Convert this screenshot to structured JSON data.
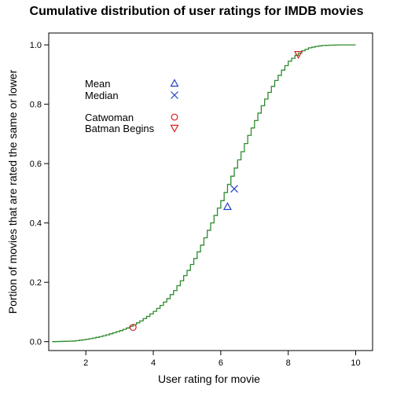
{
  "chart_data": {
    "type": "line",
    "title": "Cumulative distribution of user ratings for IMDB movies",
    "xlabel": "User rating for movie",
    "ylabel": "Portion of movies that are rated the same or lower",
    "xlim": [
      0.9,
      10.5
    ],
    "ylim": [
      -0.03,
      1.04
    ],
    "x_ticks": [
      "2",
      "4",
      "6",
      "8",
      "10"
    ],
    "y_ticks": [
      "0.0",
      "0.2",
      "0.4",
      "0.6",
      "0.8",
      "1.0"
    ],
    "grid": false,
    "line_color": "#2e8b2e",
    "series": [
      {
        "step": true,
        "x": [
          1.0,
          1.6,
          1.8,
          2.0,
          2.2,
          2.4,
          2.6,
          2.8,
          3.0,
          3.2,
          3.4,
          3.6,
          3.8,
          4.0,
          4.2,
          4.4,
          4.6,
          4.8,
          5.0,
          5.2,
          5.4,
          5.6,
          5.8,
          6.0,
          6.2,
          6.4,
          6.6,
          6.8,
          7.0,
          7.2,
          7.4,
          7.6,
          7.8,
          8.0,
          8.2,
          8.4,
          8.6,
          8.8,
          9.0,
          9.2,
          9.5,
          10.0
        ],
        "y": [
          0.0,
          0.002,
          0.005,
          0.008,
          0.012,
          0.017,
          0.023,
          0.03,
          0.037,
          0.046,
          0.057,
          0.07,
          0.085,
          0.102,
          0.122,
          0.145,
          0.172,
          0.205,
          0.24,
          0.28,
          0.325,
          0.375,
          0.425,
          0.475,
          0.53,
          0.585,
          0.64,
          0.695,
          0.745,
          0.795,
          0.84,
          0.88,
          0.915,
          0.945,
          0.965,
          0.98,
          0.99,
          0.995,
          0.998,
          0.999,
          1.0,
          1.0
        ]
      }
    ],
    "markers": [
      {
        "label": "Mean",
        "symbol": "triangle",
        "color": "#1f3fbf",
        "x": 6.2,
        "y": 0.455
      },
      {
        "label": "Median",
        "symbol": "cross",
        "color": "#1f3fbf",
        "x": 6.4,
        "y": 0.515
      },
      {
        "label": "Catwoman",
        "symbol": "circle",
        "color": "#d62020",
        "x": 3.4,
        "y": 0.048
      },
      {
        "label": "Batman Begins",
        "symbol": "triangle-down",
        "color": "#d62020",
        "x": 8.3,
        "y": 0.968
      }
    ],
    "legend_placement": "upper-left inside plot"
  }
}
